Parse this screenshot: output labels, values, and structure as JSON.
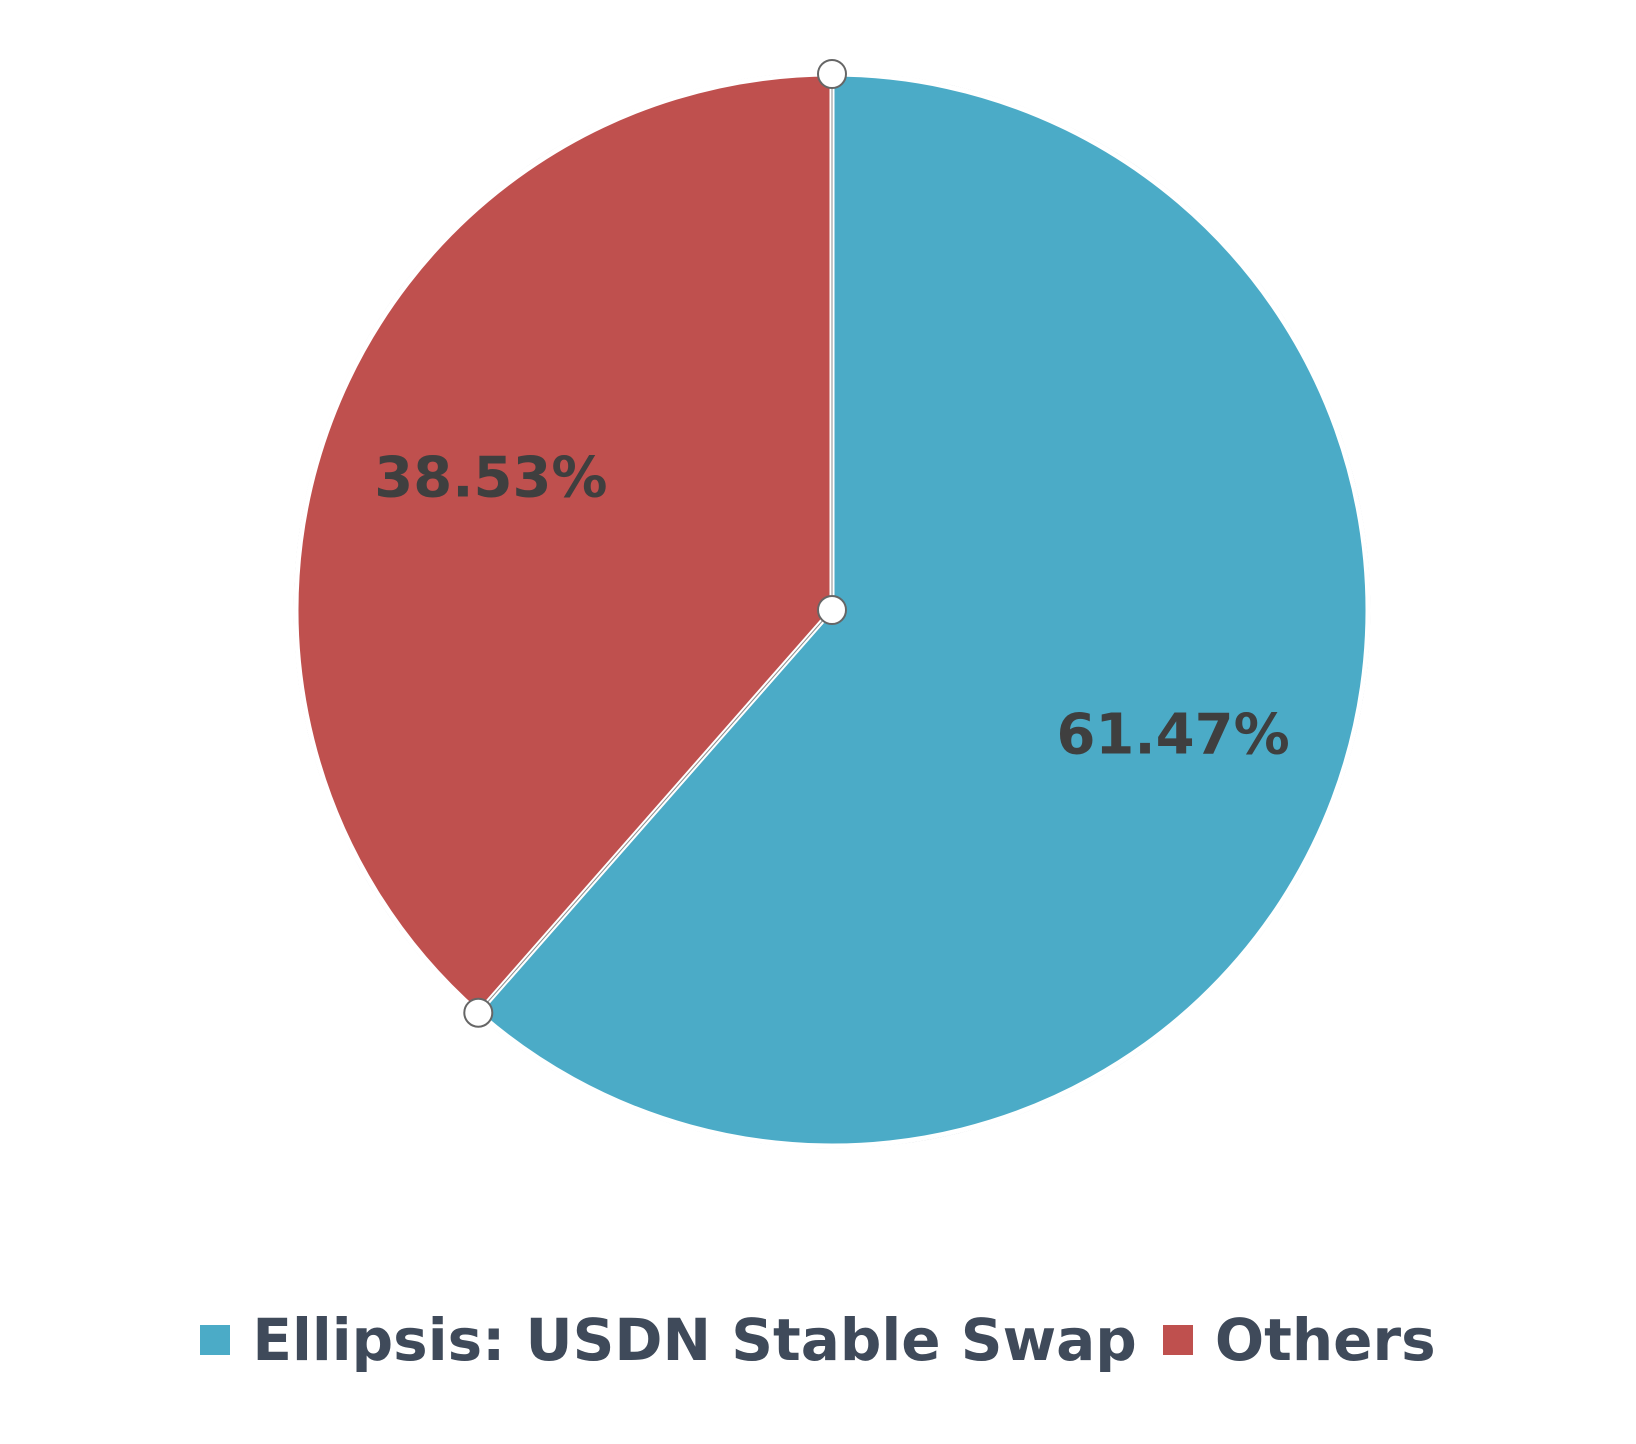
{
  "chart_data": {
    "type": "pie",
    "slices": [
      {
        "name": "Ellipsis: USDN Stable Swap",
        "value": 61.47,
        "label": "61.47%",
        "color": "#4babc7"
      },
      {
        "name": "Others",
        "value": 38.53,
        "label": "38.53%",
        "color": "#bf504e"
      }
    ],
    "legend": {
      "placement": "bottom",
      "items": [
        "Ellipsis: USDN Stable Swap",
        "Others"
      ]
    }
  }
}
